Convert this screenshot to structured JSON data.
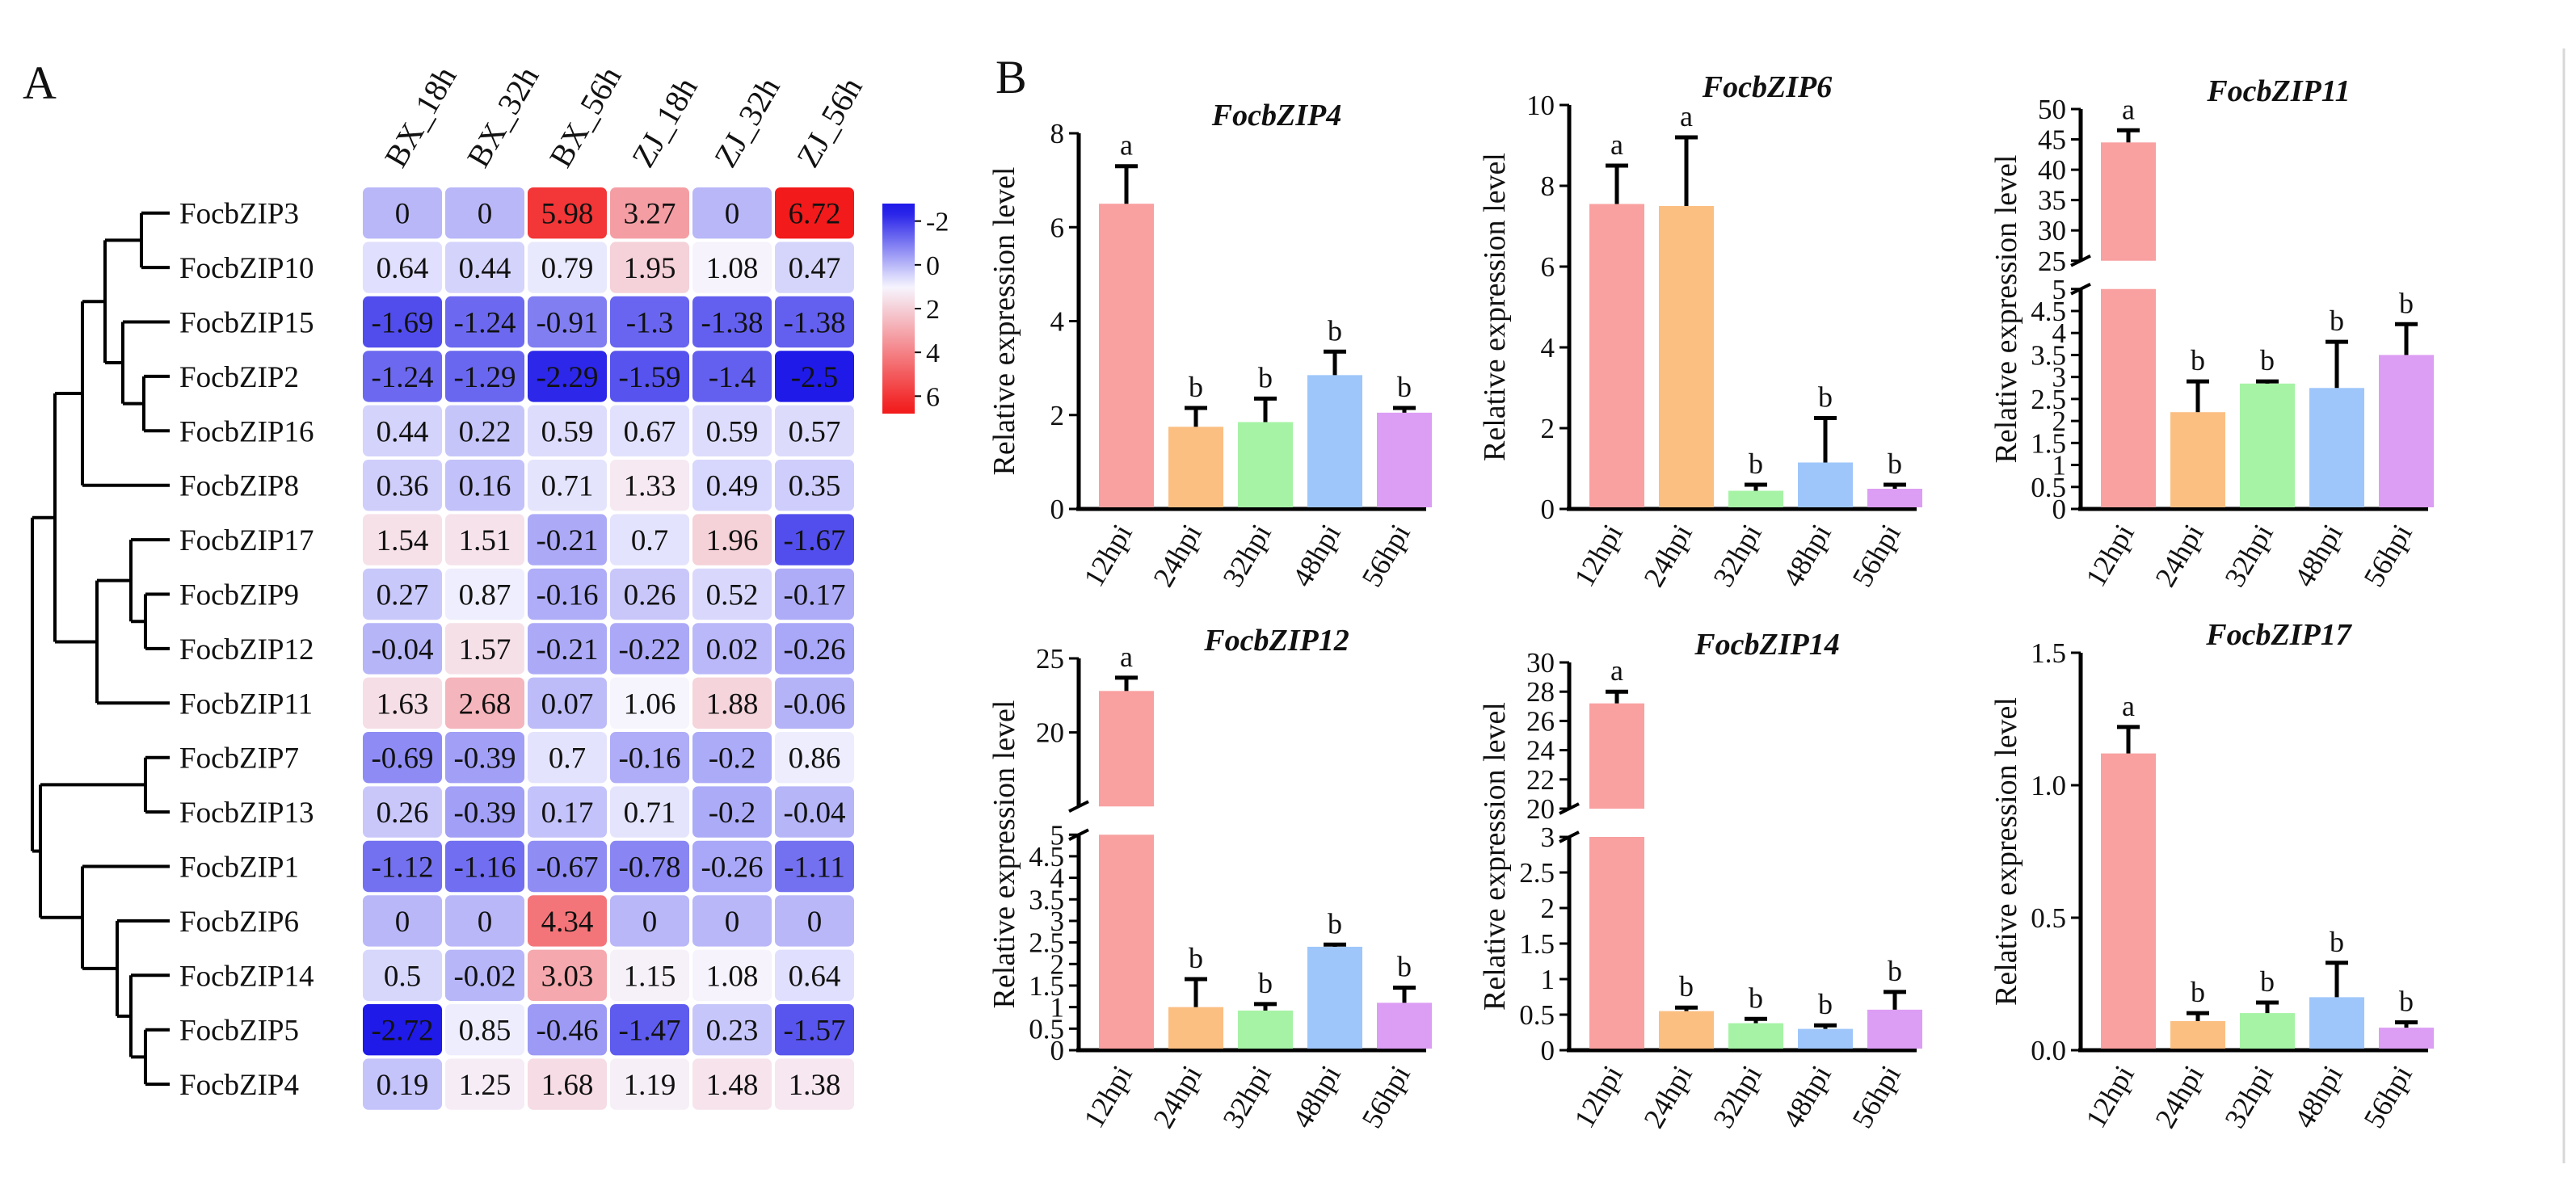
{
  "panel_a": {
    "label": "A"
  },
  "panel_b": {
    "label": "B"
  },
  "chart_data": [
    {
      "type": "heatmap",
      "columns": [
        "BX_18h",
        "BX_32h",
        "BX_56h",
        "ZJ_18h",
        "ZJ_32h",
        "ZJ_56h"
      ],
      "rows": [
        "FocbZIP3",
        "FocbZIP10",
        "FocbZIP15",
        "FocbZIP2",
        "FocbZIP16",
        "FocbZIP8",
        "FocbZIP17",
        "FocbZIP9",
        "FocbZIP12",
        "FocbZIP11",
        "FocbZIP7",
        "FocbZIP13",
        "FocbZIP1",
        "FocbZIP6",
        "FocbZIP14",
        "FocbZIP5",
        "FocbZIP4"
      ],
      "values": [
        [
          "0",
          "0",
          "5.98",
          "3.27",
          "0",
          "6.72"
        ],
        [
          "0.64",
          "0.44",
          "0.79",
          "1.95",
          "1.08",
          "0.47"
        ],
        [
          "-1.69",
          "-1.24",
          "-0.91",
          "-1.3",
          "-1.38",
          "-1.38"
        ],
        [
          "-1.24",
          "-1.29",
          "-2.29",
          "-1.59",
          "-1.4",
          "-2.5"
        ],
        [
          "0.44",
          "0.22",
          "0.59",
          "0.67",
          "0.59",
          "0.57"
        ],
        [
          "0.36",
          "0.16",
          "0.71",
          "1.33",
          "0.49",
          "0.35"
        ],
        [
          "1.54",
          "1.51",
          "-0.21",
          "0.7",
          "1.96",
          "-1.67"
        ],
        [
          "0.27",
          "0.87",
          "-0.16",
          "0.26",
          "0.52",
          "-0.17"
        ],
        [
          "-0.04",
          "1.57",
          "-0.21",
          "-0.22",
          "0.02",
          "-0.26"
        ],
        [
          "1.63",
          "2.68",
          "0.07",
          "1.06",
          "1.88",
          "-0.06"
        ],
        [
          "-0.69",
          "-0.39",
          "0.7",
          "-0.16",
          "-0.2",
          "0.86"
        ],
        [
          "0.26",
          "-0.39",
          "0.17",
          "0.71",
          "-0.2",
          "-0.04"
        ],
        [
          "-1.12",
          "-1.16",
          "-0.67",
          "-0.78",
          "-0.26",
          "-1.11"
        ],
        [
          "0",
          "0",
          "4.34",
          "0",
          "0",
          "0"
        ],
        [
          "0.5",
          "-0.02",
          "3.03",
          "1.15",
          "1.08",
          "0.64"
        ],
        [
          "-2.72",
          "0.85",
          "-0.46",
          "-1.47",
          "0.23",
          "-1.57"
        ],
        [
          "0.19",
          "1.25",
          "1.68",
          "1.19",
          "1.48",
          "1.38"
        ]
      ],
      "colorbar_ticks": [
        "-2",
        "0",
        "2",
        "4",
        "6"
      ],
      "colorbar_range": [
        -2.8,
        6.8
      ]
    },
    {
      "type": "bar",
      "title": "FocbZIP4",
      "ylabel": "Relative expression level",
      "categories": [
        "12hpi",
        "24hpi",
        "32hpi",
        "48hpi",
        "56hpi"
      ],
      "values": [
        6.5,
        1.75,
        1.85,
        2.85,
        2.05
      ],
      "errors": [
        0.8,
        0.4,
        0.5,
        0.5,
        0.1
      ],
      "letters": [
        "a",
        "b",
        "b",
        "b",
        "b"
      ],
      "ylim": [
        0,
        8
      ],
      "yticks": [
        "0",
        "2",
        "4",
        "6",
        "8"
      ]
    },
    {
      "type": "bar",
      "title": "FocbZIP6",
      "ylabel": "Relative expression level",
      "categories": [
        "12hpi",
        "24hpi",
        "32hpi",
        "48hpi",
        "56hpi"
      ],
      "values": [
        7.55,
        7.5,
        0.45,
        1.15,
        0.5
      ],
      "errors": [
        0.95,
        1.7,
        0.15,
        1.1,
        0.1
      ],
      "letters": [
        "a",
        "a",
        "b",
        "b",
        "b"
      ],
      "ylim": [
        0,
        10
      ],
      "yticks": [
        "0",
        "2",
        "4",
        "6",
        "8",
        "10"
      ]
    },
    {
      "type": "bar",
      "title": "FocbZIP11",
      "ylabel": "Relative expression level",
      "categories": [
        "12hpi",
        "24hpi",
        "32hpi",
        "48hpi",
        "56hpi"
      ],
      "values": [
        44.5,
        2.2,
        2.85,
        2.75,
        3.5
      ],
      "errors": [
        2,
        0.7,
        0.05,
        1.05,
        0.7
      ],
      "letters": [
        "a",
        "b",
        "b",
        "b",
        "b"
      ],
      "broken_axis": {
        "lower": [
          0,
          5
        ],
        "upper": [
          25,
          50
        ]
      },
      "yticks_lower": [
        "0",
        "0.5",
        "1",
        "1.5",
        "2",
        "2.5",
        "3",
        "3.5",
        "4",
        "4.5",
        "5"
      ],
      "yticks_upper": [
        "25",
        "30",
        "35",
        "40",
        "45",
        "50"
      ]
    },
    {
      "type": "bar",
      "title": "FocbZIP12",
      "ylabel": "Relative expression level",
      "categories": [
        "12hpi",
        "24hpi",
        "32hpi",
        "48hpi",
        "56hpi"
      ],
      "values": [
        22.8,
        1.0,
        0.92,
        2.4,
        1.1
      ],
      "errors": [
        0.9,
        0.65,
        0.15,
        0.05,
        0.35
      ],
      "letters": [
        "a",
        "b",
        "b",
        "b",
        "b"
      ],
      "broken_axis": {
        "lower": [
          0,
          5
        ],
        "upper": [
          15,
          25
        ]
      },
      "yticks_lower": [
        "0",
        "0.5",
        "1",
        "1.5",
        "2",
        "2.5",
        "3",
        "3.5",
        "4",
        "4.5",
        "5"
      ],
      "yticks_upper": [
        "20",
        "25"
      ]
    },
    {
      "type": "bar",
      "title": "FocbZIP14",
      "ylabel": "Relative expression level",
      "categories": [
        "12hpi",
        "24hpi",
        "32hpi",
        "48hpi",
        "56hpi"
      ],
      "values": [
        27.2,
        0.55,
        0.38,
        0.3,
        0.57
      ],
      "errors": [
        0.8,
        0.05,
        0.06,
        0.05,
        0.25
      ],
      "letters": [
        "a",
        "b",
        "b",
        "b",
        "b"
      ],
      "broken_axis": {
        "lower": [
          0,
          3
        ],
        "upper": [
          20,
          30
        ]
      },
      "yticks_lower": [
        "0",
        "0.5",
        "1",
        "1.5",
        "2",
        "2.5",
        "3"
      ],
      "yticks_upper": [
        "20",
        "22",
        "24",
        "26",
        "28",
        "30"
      ]
    },
    {
      "type": "bar",
      "title": "FocbZIP17",
      "ylabel": "Relative expression level",
      "categories": [
        "12hpi",
        "24hpi",
        "32hpi",
        "48hpi",
        "56hpi"
      ],
      "values": [
        1.12,
        0.11,
        0.14,
        0.2,
        0.085
      ],
      "errors": [
        0.1,
        0.03,
        0.04,
        0.13,
        0.02
      ],
      "letters": [
        "a",
        "b",
        "b",
        "b",
        "b"
      ],
      "ylim": [
        0,
        1.5
      ],
      "yticks": [
        "0.0",
        "0.5",
        "1.0",
        "1.5"
      ]
    }
  ],
  "bar_colors": [
    "#F9A0A0",
    "#FBBF82",
    "#A6F3A6",
    "#9EC6FA",
    "#DC9DF4"
  ],
  "heatmap_colors": {
    "low": "#1F1AE8",
    "mid": "#F6F6FF",
    "high": "#F21A1A"
  }
}
